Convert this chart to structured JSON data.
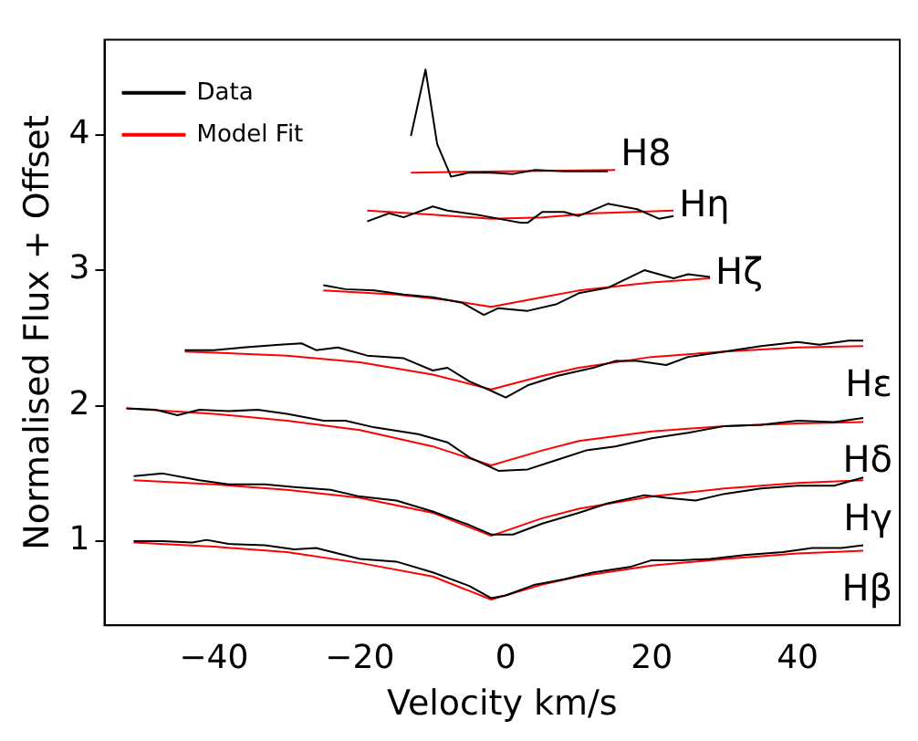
{
  "chart_data": {
    "type": "line",
    "xlabel": "Velocity km/s",
    "ylabel": "Normalised Flux + Offset",
    "xlim": [
      -55,
      54
    ],
    "ylim": [
      0.38,
      4.7
    ],
    "xticks": [
      -40,
      -20,
      0,
      20,
      40
    ],
    "yticks": [
      1,
      2,
      3,
      4
    ],
    "grid": false,
    "legend": "top left",
    "marker": "none",
    "line_style": "solid",
    "series": [
      {
        "name": "Data",
        "color": "#000000",
        "x": [
          -51,
          -47,
          -43,
          -41,
          -38,
          -33,
          -29,
          -26,
          -20,
          -15,
          -10,
          -5,
          -2,
          0,
          4,
          8,
          12,
          17,
          20,
          24,
          28,
          33,
          38,
          42,
          46,
          49
        ],
        "values": [
          1.0,
          1.0,
          0.99,
          1.01,
          0.98,
          0.97,
          0.94,
          0.95,
          0.87,
          0.85,
          0.77,
          0.67,
          0.58,
          0.6,
          0.68,
          0.72,
          0.77,
          0.81,
          0.86,
          0.86,
          0.87,
          0.9,
          0.92,
          0.95,
          0.95,
          0.97
        ]
      },
      {
        "name": "Model Fit",
        "color": "#ff0000",
        "x": [
          -51,
          -40,
          -30,
          -20,
          -10,
          -2,
          5,
          10,
          20,
          30,
          40,
          49
        ],
        "values": [
          0.99,
          0.96,
          0.92,
          0.84,
          0.74,
          0.57,
          0.68,
          0.74,
          0.82,
          0.87,
          0.91,
          0.93
        ]
      },
      {
        "color": "#000000",
        "x": [
          -51,
          -47,
          -42,
          -38,
          -33,
          -29,
          -24,
          -20,
          -15,
          -10,
          -5,
          -2,
          1,
          5,
          10,
          14,
          19,
          22,
          26,
          30,
          35,
          40,
          45,
          49
        ],
        "values": [
          1.48,
          1.5,
          1.45,
          1.42,
          1.42,
          1.4,
          1.38,
          1.33,
          1.3,
          1.22,
          1.12,
          1.05,
          1.05,
          1.13,
          1.21,
          1.28,
          1.34,
          1.32,
          1.3,
          1.35,
          1.39,
          1.41,
          1.41,
          1.47
        ]
      },
      {
        "color": "#ff0000",
        "x": [
          -51,
          -40,
          -30,
          -20,
          -10,
          -2,
          5,
          10,
          20,
          30,
          40,
          49
        ],
        "values": [
          1.45,
          1.42,
          1.38,
          1.32,
          1.21,
          1.04,
          1.17,
          1.24,
          1.33,
          1.39,
          1.43,
          1.45
        ]
      },
      {
        "color": "#000000",
        "x": [
          -52,
          -48,
          -45,
          -42,
          -38,
          -34,
          -30,
          -25,
          -22,
          -18,
          -12,
          -8,
          -5,
          -1,
          3,
          7,
          11,
          15,
          20,
          25,
          30,
          35,
          40,
          45,
          49
        ],
        "values": [
          1.98,
          1.97,
          1.93,
          1.97,
          1.96,
          1.97,
          1.94,
          1.89,
          1.89,
          1.84,
          1.79,
          1.73,
          1.62,
          1.52,
          1.53,
          1.6,
          1.67,
          1.7,
          1.76,
          1.8,
          1.85,
          1.86,
          1.89,
          1.88,
          1.91
        ]
      },
      {
        "color": "#ff0000",
        "x": [
          -52,
          -40,
          -30,
          -20,
          -10,
          -2,
          5,
          10,
          20,
          30,
          40,
          49
        ],
        "values": [
          1.98,
          1.94,
          1.89,
          1.82,
          1.7,
          1.56,
          1.67,
          1.74,
          1.81,
          1.85,
          1.87,
          1.88
        ]
      },
      {
        "color": "#000000",
        "x": [
          -44,
          -40,
          -36,
          -31,
          -28,
          -26,
          -23,
          -19,
          -14,
          -10,
          -8,
          -5,
          -2,
          0,
          3,
          7,
          12,
          15,
          18,
          22,
          25,
          30,
          35,
          40,
          43,
          47,
          49
        ],
        "values": [
          2.41,
          2.41,
          2.43,
          2.45,
          2.46,
          2.41,
          2.43,
          2.37,
          2.35,
          2.26,
          2.28,
          2.18,
          2.11,
          2.06,
          2.15,
          2.22,
          2.28,
          2.33,
          2.33,
          2.3,
          2.36,
          2.4,
          2.44,
          2.47,
          2.45,
          2.48,
          2.48
        ]
      },
      {
        "color": "#ff0000",
        "x": [
          -44,
          -30,
          -20,
          -10,
          -2,
          5,
          10,
          20,
          30,
          40,
          49
        ],
        "values": [
          2.4,
          2.37,
          2.32,
          2.23,
          2.12,
          2.22,
          2.28,
          2.36,
          2.4,
          2.43,
          2.44
        ]
      },
      {
        "color": "#000000",
        "x": [
          -25,
          -22,
          -18,
          -14,
          -10,
          -6,
          -3,
          -1,
          3,
          7,
          10,
          14,
          19,
          23,
          25,
          28
        ],
        "values": [
          2.89,
          2.86,
          2.85,
          2.82,
          2.8,
          2.76,
          2.67,
          2.72,
          2.7,
          2.75,
          2.83,
          2.87,
          3.0,
          2.94,
          2.97,
          2.95
        ]
      },
      {
        "color": "#ff0000",
        "x": [
          -25,
          -15,
          -8,
          -2,
          5,
          10,
          20,
          28
        ],
        "values": [
          2.85,
          2.82,
          2.78,
          2.73,
          2.8,
          2.85,
          2.91,
          2.94
        ]
      },
      {
        "color": "#000000",
        "x": [
          -19,
          -16,
          -14,
          -10,
          -8,
          -4,
          0,
          2,
          3,
          5,
          8,
          10,
          14,
          18,
          21,
          23
        ],
        "values": [
          3.36,
          3.42,
          3.39,
          3.47,
          3.44,
          3.41,
          3.37,
          3.35,
          3.35,
          3.43,
          3.43,
          3.4,
          3.49,
          3.45,
          3.38,
          3.4
        ]
      },
      {
        "color": "#ff0000",
        "x": [
          -19,
          -10,
          -2,
          5,
          12,
          23
        ],
        "values": [
          3.44,
          3.41,
          3.38,
          3.39,
          3.42,
          3.44
        ]
      },
      {
        "color": "#000000",
        "x": [
          -13,
          -11,
          -9.4,
          -7.5,
          -5,
          -2,
          1,
          4,
          8,
          14
        ],
        "values": [
          3.99,
          4.48,
          3.93,
          3.69,
          3.72,
          3.72,
          3.71,
          3.74,
          3.73,
          3.73
        ]
      },
      {
        "color": "#ff0000",
        "x": [
          -13,
          0,
          15
        ],
        "values": [
          3.72,
          3.73,
          3.74
        ]
      }
    ],
    "annotations": [
      "H8",
      "Hη",
      "Hζ",
      "Hε",
      "Hδ",
      "Hγ",
      "Hβ"
    ]
  }
}
